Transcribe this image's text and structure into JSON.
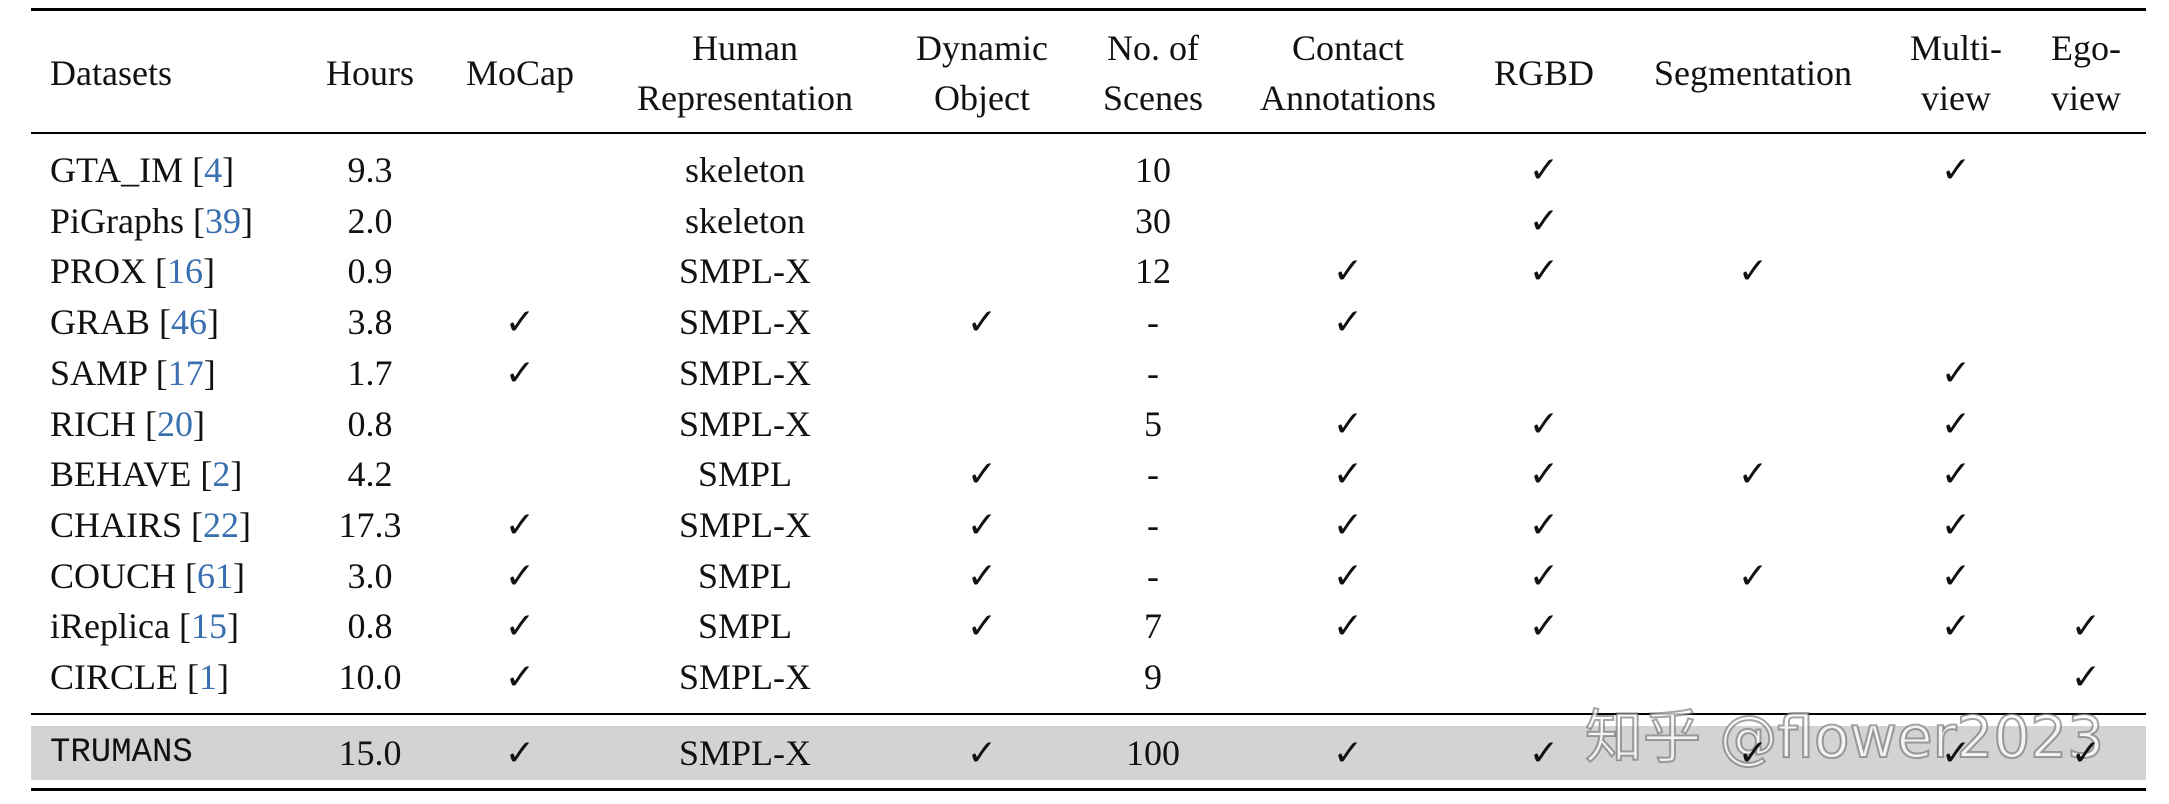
{
  "table": {
    "header": [
      [
        "Datasets"
      ],
      [
        "Hours"
      ],
      [
        "MoCap"
      ],
      [
        "Human",
        "Representation"
      ],
      [
        "Dynamic",
        "Object"
      ],
      [
        "No. of",
        "Scenes"
      ],
      [
        "Contact",
        "Annotations"
      ],
      [
        "RGBD"
      ],
      [
        "Segmentation"
      ],
      [
        "Multi-",
        "view"
      ],
      [
        "Ego-",
        "view"
      ]
    ],
    "rows": [
      {
        "name": "GTA_IM",
        "ref": "[4]",
        "cells": [
          "9.3",
          null,
          "skeleton",
          null,
          "10",
          null,
          "✓",
          null,
          "✓",
          null
        ]
      },
      {
        "name": "PiGraphs",
        "ref": "[39]",
        "cells": [
          "2.0",
          null,
          "skeleton",
          null,
          "30",
          null,
          "✓",
          null,
          null,
          null
        ]
      },
      {
        "name": "PROX",
        "ref": "[16]",
        "cells": [
          "0.9",
          null,
          "SMPL-X",
          null,
          "12",
          "✓",
          "✓",
          "✓",
          null,
          null
        ]
      },
      {
        "name": "GRAB",
        "ref": "[46]",
        "cells": [
          "3.8",
          "✓",
          "SMPL-X",
          "✓",
          "-",
          "✓",
          null,
          null,
          null,
          null
        ]
      },
      {
        "name": "SAMP",
        "ref": "[17]",
        "cells": [
          "1.7",
          "✓",
          "SMPL-X",
          null,
          "-",
          null,
          null,
          null,
          "✓",
          null
        ]
      },
      {
        "name": "RICH",
        "ref": "[20]",
        "cells": [
          "0.8",
          null,
          "SMPL-X",
          null,
          "5",
          "✓",
          "✓",
          null,
          "✓",
          null
        ]
      },
      {
        "name": "BEHAVE",
        "ref": "[2]",
        "cells": [
          "4.2",
          null,
          "SMPL",
          "✓",
          "-",
          "✓",
          "✓",
          "✓",
          "✓",
          null
        ]
      },
      {
        "name": "CHAIRS",
        "ref": "[22]",
        "cells": [
          "17.3",
          "✓",
          "SMPL-X",
          "✓",
          "-",
          "✓",
          "✓",
          null,
          "✓",
          null
        ]
      },
      {
        "name": "COUCH",
        "ref": "[61]",
        "cells": [
          "3.0",
          "✓",
          "SMPL",
          "✓",
          "-",
          "✓",
          "✓",
          "✓",
          "✓",
          null
        ]
      },
      {
        "name": "iReplica",
        "ref": "[15]",
        "cells": [
          "0.8",
          "✓",
          "SMPL",
          "✓",
          "7",
          "✓",
          "✓",
          null,
          "✓",
          "✓"
        ]
      },
      {
        "name": "CIRCLE",
        "ref": "[1]",
        "cells": [
          "10.0",
          "✓",
          "SMPL-X",
          null,
          "9",
          null,
          null,
          null,
          null,
          "✓"
        ]
      }
    ],
    "highlight_row": {
      "name": "TRUMANS",
      "cells": [
        "15.0",
        "✓",
        "SMPL-X",
        "✓",
        "100",
        "✓",
        "✓",
        "✓",
        "✓",
        "✓"
      ]
    }
  },
  "watermark": "知乎 @flower2023"
}
